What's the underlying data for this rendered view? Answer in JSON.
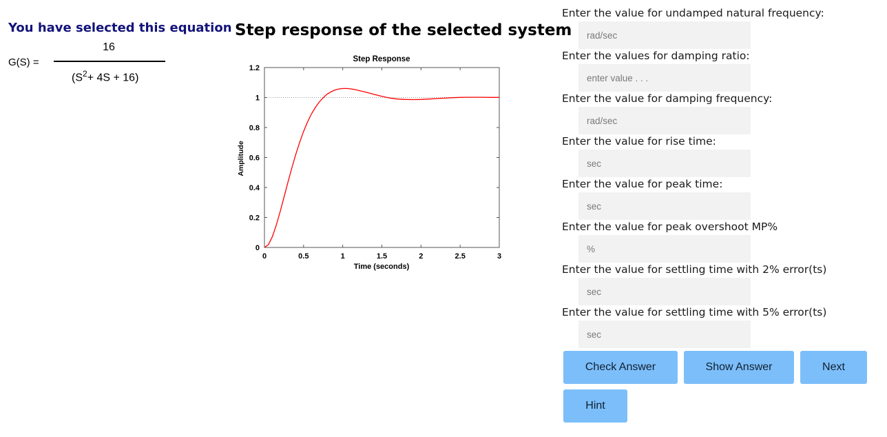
{
  "left_panel": {
    "selected_title": "You have selected this equation",
    "gs_label": "G(S) =",
    "numerator": "16",
    "denominator_prefix": "(S",
    "denominator_exponent": "2",
    "denominator_suffix": "+ 4S + 16)"
  },
  "main_title": "Step response of the selected system is:",
  "chart_data": {
    "type": "line",
    "title": "Step Response",
    "xlabel": "Time (seconds)",
    "ylabel": "Amplitude",
    "xlim": [
      0,
      3
    ],
    "ylim": [
      0,
      1.2
    ],
    "xticks": [
      "0",
      "0.5",
      "1",
      "1.5",
      "2",
      "2.5",
      "3"
    ],
    "yticks": [
      "0",
      "0.2",
      "0.4",
      "0.6",
      "0.8",
      "1",
      "1.2"
    ],
    "reference_line": 1,
    "series": [
      {
        "x": [
          0,
          0.05,
          0.1,
          0.15,
          0.2,
          0.25,
          0.3,
          0.35,
          0.4,
          0.45,
          0.5,
          0.55,
          0.6,
          0.65,
          0.7,
          0.75,
          0.8,
          0.85,
          0.9,
          0.95,
          1.0,
          1.05,
          1.1,
          1.15,
          1.2,
          1.3,
          1.4,
          1.5,
          1.6,
          1.7,
          1.8,
          1.9,
          2.0,
          2.1,
          2.2,
          2.3,
          2.4,
          2.5,
          2.6,
          2.7,
          2.8,
          2.9,
          3.0
        ],
        "values": [
          0,
          0.019,
          0.071,
          0.146,
          0.237,
          0.335,
          0.435,
          0.531,
          0.621,
          0.702,
          0.774,
          0.837,
          0.89,
          0.934,
          0.97,
          0.999,
          1.022,
          1.038,
          1.05,
          1.057,
          1.06,
          1.06,
          1.058,
          1.054,
          1.048,
          1.035,
          1.021,
          1.008,
          0.997,
          0.99,
          0.987,
          0.986,
          0.987,
          0.99,
          0.993,
          0.996,
          0.999,
          1.001,
          1.002,
          1.002,
          1.002,
          1.001,
          1.001
        ],
        "color": "#ff0000"
      }
    ],
    "grid": false
  },
  "form": {
    "questions": [
      {
        "label": "Enter the value for undamped natural frequency:",
        "placeholder": "rad/sec"
      },
      {
        "label": "Enter the values for damping ratio:",
        "placeholder": "enter value . . ."
      },
      {
        "label": "Enter the value for damping frequency:",
        "placeholder": "rad/sec"
      },
      {
        "label": "Enter the value for rise time:",
        "placeholder": "sec"
      },
      {
        "label": "Enter the value for peak time:",
        "placeholder": "sec"
      },
      {
        "label": "Enter the value for peak overshoot MP%",
        "placeholder": "%"
      },
      {
        "label": "Enter the value for settling time with 2% error(ts)",
        "placeholder": "sec"
      },
      {
        "label": "Enter the value for settling time with 5% error(ts)",
        "placeholder": "sec"
      }
    ]
  },
  "buttons": {
    "check": "Check Answer",
    "show": "Show Answer",
    "next": "Next",
    "hint": "Hint",
    "color": "#7cbefa"
  }
}
